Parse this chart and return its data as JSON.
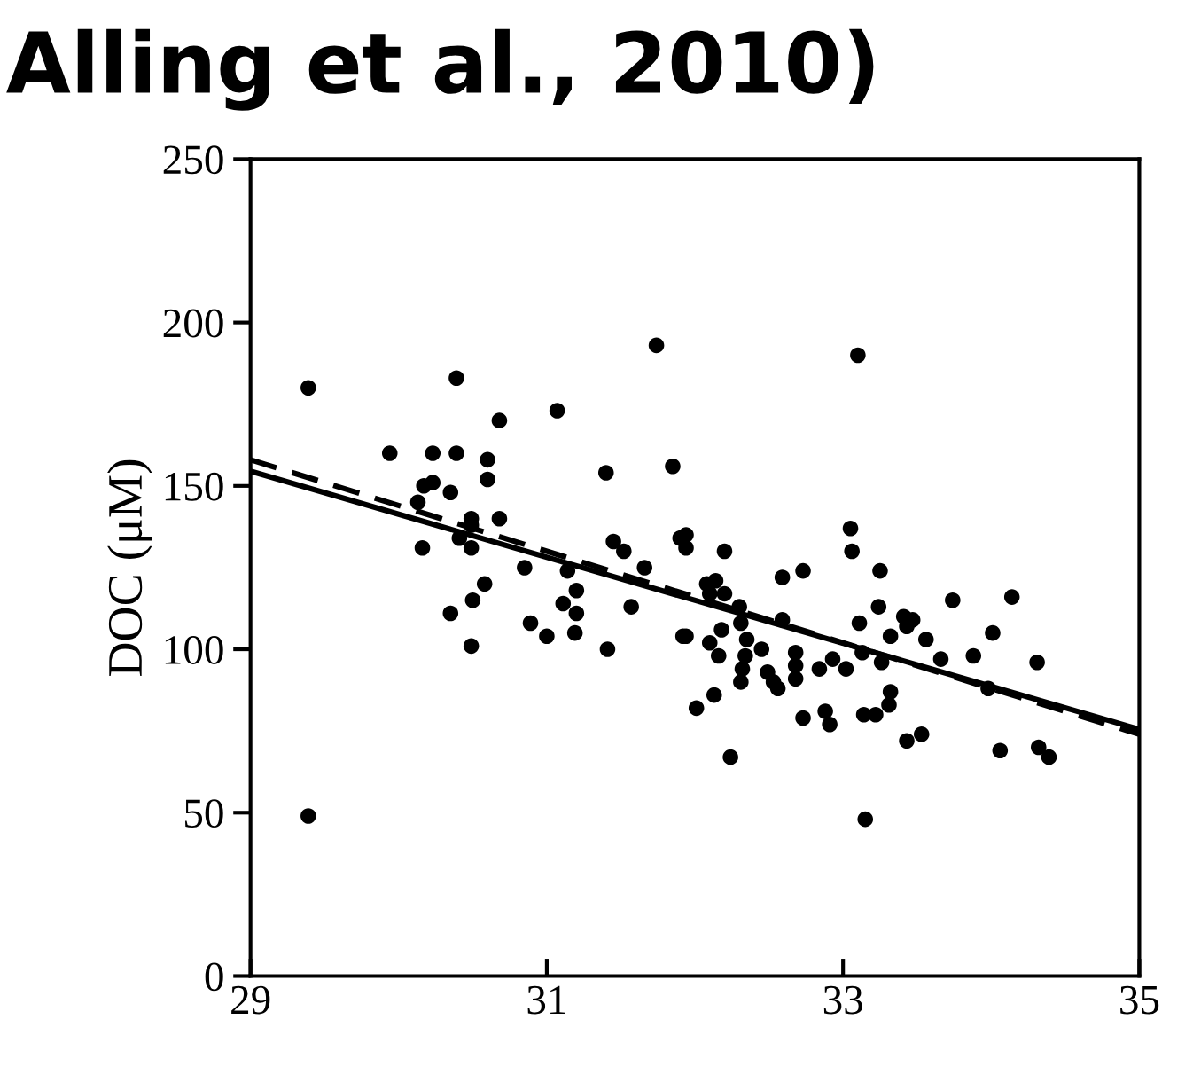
{
  "chart_data": {
    "type": "scatter",
    "title": "Alling et al., 2010)",
    "ylabel": "DOC (μM)",
    "xlim": [
      29,
      35
    ],
    "xticks": [
      29,
      31,
      33,
      35
    ],
    "ylim": [
      0,
      250
    ],
    "yticks": [
      0,
      50,
      100,
      150,
      200,
      250
    ],
    "grid": false,
    "legend": false,
    "marker": "circle",
    "series": [
      {
        "color": "#000000",
        "x": [
          29.39,
          30.39,
          30.68,
          31.07,
          31.74,
          33.1,
          29.94,
          30.23,
          30.39,
          30.6,
          30.6,
          31.4,
          31.85,
          30.17,
          30.23,
          30.35,
          30.13,
          30.49,
          30.68,
          30.41,
          30.49,
          30.16,
          30.49,
          31.45,
          31.52,
          31.9,
          31.94,
          31.94,
          30.85,
          31.14,
          31.66,
          30.58,
          30.5,
          31.2,
          31.11,
          31.2,
          31.57,
          30.35,
          30.89,
          31.0,
          31.19,
          30.49,
          31.41,
          31.92,
          29.39,
          32.2,
          33.05,
          33.06,
          32.73,
          32.59,
          33.25,
          32.08,
          32.14,
          32.1,
          32.2,
          32.3,
          32.31,
          31.94,
          32.1,
          32.18,
          32.35,
          32.59,
          33.24,
          33.74,
          34.14,
          33.11,
          33.41,
          33.47,
          33.43,
          33.56,
          33.32,
          34.01,
          32.45,
          32.68,
          32.68,
          32.16,
          32.34,
          32.32,
          32.49,
          32.31,
          32.53,
          32.68,
          32.84,
          32.93,
          33.02,
          33.13,
          33.26,
          33.66,
          33.88,
          34.31,
          32.13,
          33.32,
          33.98,
          32.56,
          32.01,
          32.73,
          32.88,
          32.91,
          33.14,
          33.22,
          33.31,
          33.43,
          33.53,
          34.06,
          34.32,
          34.39,
          32.24,
          33.15
        ],
        "values": [
          180,
          183,
          170,
          173,
          193,
          190,
          160,
          160,
          160,
          158,
          152,
          154,
          156,
          150,
          151,
          148,
          145,
          140,
          140,
          134,
          138,
          131,
          131,
          133,
          130,
          134,
          135,
          131,
          125,
          124,
          125,
          120,
          115,
          118,
          114,
          111,
          113,
          111,
          108,
          104,
          105,
          101,
          100,
          104,
          49,
          130,
          137,
          130,
          124,
          122,
          124,
          120,
          121,
          117,
          117,
          113,
          108,
          104,
          102,
          106,
          103,
          109,
          113,
          115,
          116,
          108,
          110,
          109,
          107,
          103,
          104,
          105,
          100,
          99,
          95,
          98,
          98,
          94,
          93,
          90,
          90,
          91,
          94,
          97,
          94,
          99,
          96,
          97,
          98,
          96,
          86,
          87,
          88,
          88,
          82,
          79,
          81,
          77,
          80,
          80,
          83,
          72,
          74,
          69,
          70,
          67,
          67,
          48
        ]
      },
      {
        "type": "line",
        "color": "#000000",
        "line_style": "solid",
        "marker": "none",
        "x": [
          29,
          35
        ],
        "values": [
          154.5,
          75.5
        ]
      },
      {
        "type": "line",
        "color": "#000000",
        "line_style": "dashed",
        "marker": "none",
        "x": [
          29,
          35
        ],
        "values": [
          158,
          74
        ]
      }
    ]
  }
}
